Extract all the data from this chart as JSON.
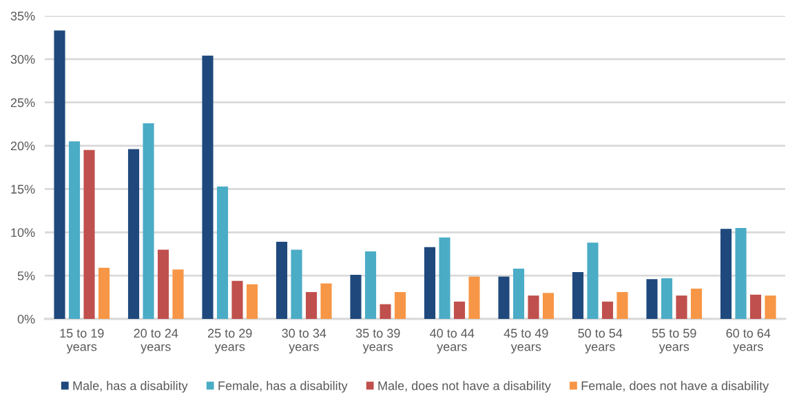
{
  "chart_data": {
    "type": "bar",
    "categories": [
      "15 to 19\nyears",
      "20 to 24\nyears",
      "25 to 29\nyears",
      "30 to 34\nyears",
      "35 to 39\nyears",
      "40 to 44\nyears",
      "45 to 49\nyears",
      "50 to 54\nyears",
      "55 to 59\nyears",
      "60 to 64\nyears"
    ],
    "series": [
      {
        "name": "Male, has a disability",
        "color": "#1f497d",
        "values": [
          33.3,
          19.6,
          30.4,
          8.9,
          5.1,
          8.3,
          4.9,
          5.4,
          4.6,
          10.4
        ]
      },
      {
        "name": "Female, has a disability",
        "color": "#4bacc6",
        "values": [
          20.5,
          22.6,
          15.3,
          8.0,
          7.8,
          9.4,
          5.8,
          8.8,
          4.7,
          10.5
        ]
      },
      {
        "name": "Male, does not have a disability",
        "color": "#c0504d",
        "values": [
          19.5,
          8.0,
          4.4,
          3.1,
          1.7,
          2.0,
          2.7,
          2.0,
          2.7,
          2.8
        ]
      },
      {
        "name": "Female, does not have a disability",
        "color": "#f79646",
        "values": [
          5.9,
          5.7,
          4.0,
          4.1,
          3.1,
          4.9,
          3.0,
          3.1,
          3.5,
          2.7
        ]
      }
    ],
    "ylim": [
      0,
      35
    ],
    "yticks": [
      {
        "value": 0,
        "label": "0%"
      },
      {
        "value": 5,
        "label": "5%"
      },
      {
        "value": 10,
        "label": "10%"
      },
      {
        "value": 15,
        "label": "15%"
      },
      {
        "value": 20,
        "label": "20%"
      },
      {
        "value": 25,
        "label": "25%"
      },
      {
        "value": 30,
        "label": "30%"
      },
      {
        "value": 35,
        "label": "35%"
      }
    ],
    "grid": "y",
    "legend": "bottom"
  }
}
